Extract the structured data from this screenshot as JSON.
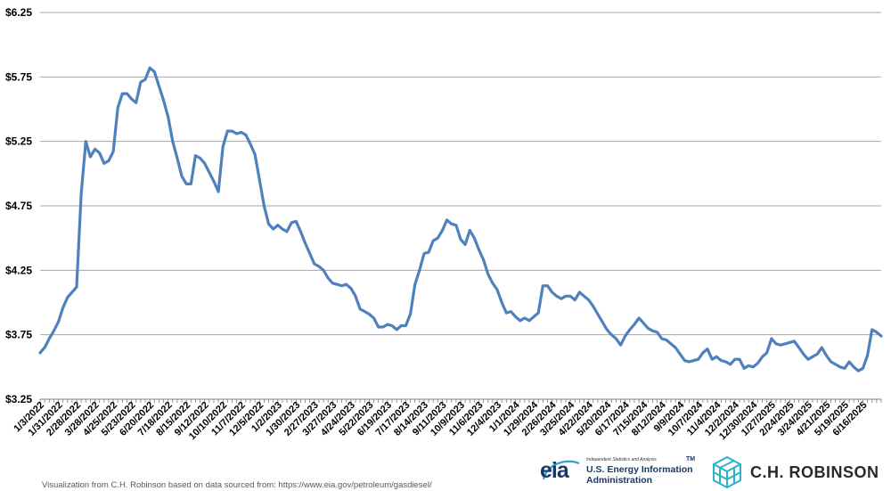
{
  "chart_data": {
    "type": "line",
    "yticks": [
      "$6.25",
      "$5.75",
      "$5.25",
      "$4.75",
      "$4.25",
      "$3.75",
      "$3.25"
    ],
    "ylim": [
      3.25,
      6.25
    ],
    "xticks": [
      "1/3/2022",
      "1/31/2022",
      "2/28/2022",
      "3/28/2022",
      "4/25/2022",
      "5/23/2022",
      "6/20/2022",
      "7/18/2022",
      "8/15/2022",
      "9/12/2022",
      "10/10/2022",
      "11/7/2022",
      "12/5/2022",
      "1/2/2023",
      "1/30/2023",
      "2/27/2023",
      "3/27/2023",
      "4/24/2023",
      "5/22/2023",
      "6/19/2023",
      "7/17/2023",
      "8/14/2023",
      "9/11/2023",
      "10/9/2023",
      "11/6/2023",
      "12/4/2023",
      "1/1/2024",
      "1/29/2024",
      "2/26/2024",
      "3/25/2024",
      "4/22/2024",
      "5/20/2024",
      "6/17/2024",
      "7/15/2024",
      "8/12/2024",
      "9/9/2024",
      "10/7/2024",
      "11/4/2024",
      "12/2/2024",
      "12/30/2024",
      "1/27/2025",
      "2/24/2025",
      "3/24/2025",
      "4/21/2025",
      "5/19/2025",
      "6/16/2025"
    ],
    "series": [
      {
        "color": "#4f81bd",
        "values": [
          3.61,
          3.65,
          3.72,
          3.78,
          3.85,
          3.96,
          4.04,
          4.08,
          4.12,
          4.85,
          5.25,
          5.13,
          5.19,
          5.16,
          5.08,
          5.1,
          5.17,
          5.51,
          5.62,
          5.62,
          5.58,
          5.55,
          5.71,
          5.73,
          5.82,
          5.79,
          5.68,
          5.57,
          5.44,
          5.25,
          5.12,
          4.98,
          4.92,
          4.92,
          5.14,
          5.12,
          5.08,
          5.01,
          4.94,
          4.86,
          5.21,
          5.33,
          5.33,
          5.31,
          5.32,
          5.3,
          5.23,
          5.15,
          4.95,
          4.75,
          4.61,
          4.57,
          4.6,
          4.57,
          4.55,
          4.62,
          4.63,
          4.55,
          4.46,
          4.38,
          4.3,
          4.28,
          4.25,
          4.19,
          4.15,
          4.14,
          4.13,
          4.14,
          4.11,
          4.05,
          3.95,
          3.93,
          3.91,
          3.88,
          3.81,
          3.81,
          3.83,
          3.82,
          3.79,
          3.82,
          3.82,
          3.91,
          4.14,
          4.25,
          4.38,
          4.39,
          4.48,
          4.5,
          4.56,
          4.64,
          4.61,
          4.6,
          4.49,
          4.45,
          4.56,
          4.5,
          4.41,
          4.33,
          4.22,
          4.15,
          4.1,
          4.0,
          3.92,
          3.93,
          3.89,
          3.86,
          3.88,
          3.86,
          3.89,
          3.92,
          4.13,
          4.13,
          4.08,
          4.05,
          4.03,
          4.05,
          4.05,
          4.02,
          4.08,
          4.05,
          4.02,
          3.97,
          3.91,
          3.85,
          3.79,
          3.75,
          3.72,
          3.67,
          3.74,
          3.79,
          3.83,
          3.88,
          3.84,
          3.8,
          3.78,
          3.77,
          3.72,
          3.71,
          3.68,
          3.65,
          3.6,
          3.55,
          3.54,
          3.55,
          3.56,
          3.61,
          3.64,
          3.56,
          3.58,
          3.55,
          3.54,
          3.52,
          3.56,
          3.56,
          3.49,
          3.51,
          3.5,
          3.53,
          3.58,
          3.61,
          3.72,
          3.68,
          3.67,
          3.68,
          3.69,
          3.7,
          3.65,
          3.6,
          3.56,
          3.58,
          3.6,
          3.65,
          3.59,
          3.54,
          3.52,
          3.5,
          3.49,
          3.54,
          3.5,
          3.47,
          3.49,
          3.59,
          3.79,
          3.77,
          3.74
        ]
      }
    ],
    "grid": true,
    "legend": "none"
  },
  "credit": "Visualization from C.H. Robinson based on data sourced from: https://www.eia.gov/petroleum/gasdiesel/",
  "logos": {
    "eia": {
      "mark": "eia",
      "tagline": "Independent Statistics and Analysis",
      "name": "U.S. Energy Information Administration",
      "tm": "TM"
    },
    "chr": {
      "name": "C.H. ROBINSON"
    }
  }
}
